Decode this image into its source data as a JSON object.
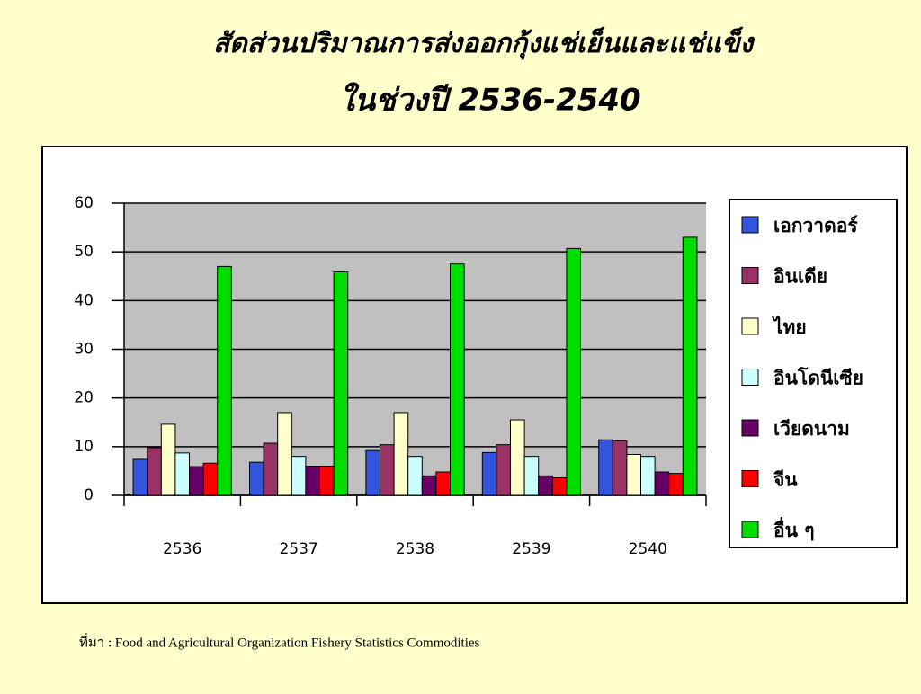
{
  "chart_data": {
    "type": "bar",
    "title": "สัดส่วนปริมาณการส่งออกกุ้งแช่เย็นและแช่แข็ง",
    "subtitle": "ในช่วงปี 2536-2540",
    "categories": [
      "2536",
      "2537",
      "2538",
      "2539",
      "2540"
    ],
    "series": [
      {
        "name": "เอกวาดอร์",
        "color": "#3355dd",
        "values": [
          7.4,
          6.8,
          9.2,
          8.8,
          11.4
        ]
      },
      {
        "name": "อินเดีย",
        "color": "#993366",
        "values": [
          9.8,
          10.7,
          10.4,
          10.4,
          11.2
        ]
      },
      {
        "name": "ไทย",
        "color": "#ffffcc",
        "values": [
          14.6,
          17,
          17,
          15.5,
          8.4
        ]
      },
      {
        "name": "อินโดนีเซีย",
        "color": "#ccffff",
        "values": [
          8.7,
          8,
          8,
          8,
          8
        ]
      },
      {
        "name": "เวียดนาม",
        "color": "#660066",
        "values": [
          5.9,
          6,
          4,
          4,
          4.8
        ]
      },
      {
        "name": "จีน",
        "color": "#ff0000",
        "values": [
          6.6,
          6,
          4.8,
          3.6,
          4.5
        ]
      },
      {
        "name": "อื่น ๆ",
        "color": "#00dd00",
        "values": [
          47,
          45.9,
          47.5,
          50.7,
          53
        ]
      }
    ],
    "ylim": [
      0,
      60
    ],
    "yticks": [
      0,
      10,
      20,
      30,
      40,
      50,
      60
    ],
    "grid": true,
    "legend": "right",
    "source": "ที่มา :  Food and Agricultural Organization Fishery Statistics Commodities"
  }
}
